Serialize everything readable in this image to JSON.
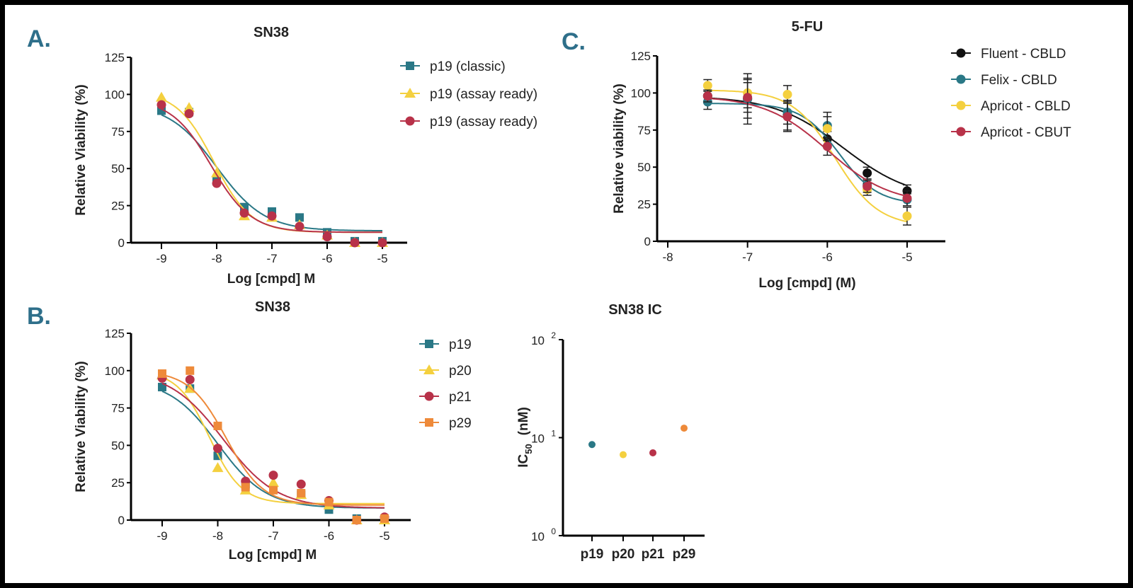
{
  "panels": {
    "a": "A.",
    "b": "B.",
    "c": "C."
  },
  "chart_data": [
    {
      "id": "A",
      "type": "line",
      "title": "SN38",
      "xlabel": "Log [cmpd] M",
      "ylabel": "Relative Viability (%)",
      "xlim": [
        -9,
        -5
      ],
      "ylim": [
        0,
        125
      ],
      "xticks": [
        "-9",
        "-8",
        "-7",
        "-6",
        "-5"
      ],
      "yticks": [
        "0",
        "25",
        "50",
        "75",
        "100",
        "125"
      ],
      "legend_position": "right",
      "x": [
        -9,
        -8.5,
        -8,
        -7.5,
        -7,
        -6.5,
        -6,
        -5.5,
        -5
      ],
      "series": [
        {
          "name": "p19 (classic)",
          "color": "#2a7886",
          "marker": "square",
          "values": [
            89,
            88,
            43,
            24,
            21,
            17,
            7,
            1,
            1
          ]
        },
        {
          "name": "p19 (assay ready)",
          "color": "#f4d03f",
          "marker": "triangle",
          "values": [
            98,
            91,
            47,
            18,
            17,
            12,
            5,
            0,
            0
          ]
        },
        {
          "name": "p19 (assay ready)",
          "color": "#b83249",
          "marker": "circle",
          "values": [
            93,
            87,
            40,
            20,
            18,
            11,
            4,
            0,
            0
          ]
        }
      ]
    },
    {
      "id": "B",
      "type": "line",
      "title": "SN38",
      "xlabel": "Log [cmpd] M",
      "ylabel": "Relative Viability (%)",
      "xlim": [
        -9,
        -5
      ],
      "ylim": [
        0,
        125
      ],
      "xticks": [
        "-9",
        "-8",
        "-7",
        "-6",
        "-5"
      ],
      "yticks": [
        "0",
        "25",
        "50",
        "75",
        "100",
        "125"
      ],
      "legend_position": "right",
      "x": [
        -9,
        -8.5,
        -8,
        -7.5,
        -7,
        -6.5,
        -6,
        -5.5,
        -5
      ],
      "series": [
        {
          "name": "p19",
          "color": "#2a7886",
          "marker": "square",
          "values": [
            89,
            88,
            43,
            24,
            21,
            17,
            7,
            1,
            1
          ]
        },
        {
          "name": "p20",
          "color": "#f4d03f",
          "marker": "triangle",
          "values": [
            97,
            88,
            35,
            20,
            25,
            17,
            10,
            0,
            0
          ]
        },
        {
          "name": "p21",
          "color": "#b83249",
          "marker": "circle",
          "values": [
            95,
            94,
            48,
            26,
            30,
            24,
            13,
            0,
            2
          ]
        },
        {
          "name": "p29",
          "color": "#ee8a3a",
          "marker": "square",
          "values": [
            98,
            100,
            63,
            22,
            20,
            18,
            12,
            0,
            1
          ]
        }
      ]
    },
    {
      "id": "C",
      "type": "line",
      "title": "5-FU",
      "xlabel": "Log [cmpd] (M)",
      "ylabel": "Relative viability (%)",
      "xlim": [
        -8,
        -5
      ],
      "ylim": [
        0,
        125
      ],
      "xticks": [
        "-8",
        "-7",
        "-6",
        "-5"
      ],
      "yticks": [
        "0",
        "25",
        "50",
        "75",
        "100",
        "125"
      ],
      "legend_position": "top-right",
      "x": [
        -7.5,
        -7,
        -6.5,
        -6,
        -5.5,
        -5
      ],
      "series": [
        {
          "name": "Fluent - CBLD",
          "color": "#111111",
          "marker": "circle",
          "values": [
            98,
            96,
            85,
            69,
            46,
            34
          ],
          "errors": [
            4,
            13,
            10,
            5,
            4,
            4
          ]
        },
        {
          "name": "Felix - CBLD",
          "color": "#2a7886",
          "marker": "circle",
          "values": [
            94,
            96,
            87,
            78,
            38,
            28
          ],
          "errors": [
            5,
            17,
            8,
            9,
            4,
            4
          ]
        },
        {
          "name": "Apricot - CBLD",
          "color": "#f4d03f",
          "marker": "circle",
          "values": [
            105,
            100,
            99,
            76,
            35,
            17
          ],
          "errors": [
            4,
            10,
            6,
            8,
            4,
            6
          ]
        },
        {
          "name": "Apricot - CBUT",
          "color": "#b83249",
          "marker": "circle",
          "values": [
            98,
            97,
            84,
            64,
            37,
            29
          ],
          "errors": [
            4,
            10,
            10,
            6,
            4,
            5
          ]
        }
      ]
    },
    {
      "id": "IC50",
      "type": "scatter",
      "title": "SN38 IC",
      "title_sub": "50",
      "ylabel": "IC",
      "ylabel_sub": "50",
      "ylabel_unit": "(nM)",
      "yscale": "log",
      "ylim": [
        1,
        100
      ],
      "yticks": [
        {
          "base": "10",
          "exp": "0"
        },
        {
          "base": "10",
          "exp": "1"
        },
        {
          "base": "10",
          "exp": "2"
        }
      ],
      "categories": [
        "p19",
        "p20",
        "p21",
        "p29"
      ],
      "values": [
        8.5,
        6.7,
        7.0,
        12.5
      ],
      "colors": [
        "#2a7886",
        "#f4d03f",
        "#b83249",
        "#ee8a3a"
      ]
    }
  ]
}
